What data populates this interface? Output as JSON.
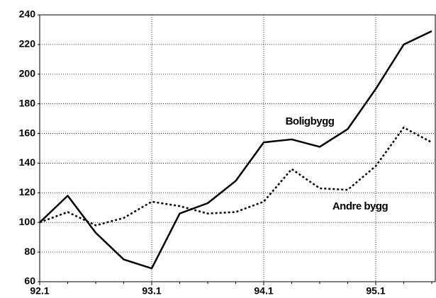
{
  "chart_data": {
    "type": "line",
    "categories": [
      "92.1",
      null,
      null,
      null,
      "93.1",
      null,
      null,
      null,
      "94.1",
      null,
      null,
      null,
      "95.1",
      null,
      null
    ],
    "series": [
      {
        "name": "Boligbygg",
        "color": "#000000",
        "style": "solid",
        "values": [
          100,
          118,
          93,
          75,
          69,
          106,
          113,
          128,
          154,
          156,
          151,
          163,
          190,
          220,
          229
        ]
      },
      {
        "name": "Andre bygg",
        "color": "#000000",
        "style": "dotted",
        "values": [
          100,
          107,
          98,
          103,
          114,
          111,
          106,
          107,
          114,
          136,
          123,
          122,
          138,
          164,
          154
        ]
      }
    ],
    "ylim": [
      60,
      240
    ],
    "yticks": [
      60,
      80,
      100,
      120,
      140,
      160,
      180,
      200,
      220,
      240
    ],
    "grid": true
  }
}
